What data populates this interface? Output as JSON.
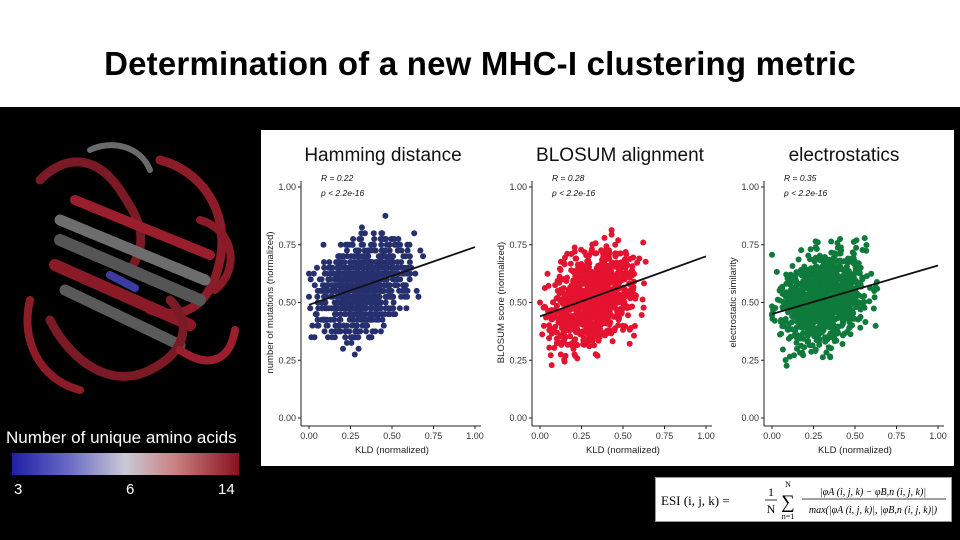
{
  "slide": {
    "title": "Determination of a new MHC-I clustering metric"
  },
  "colorbar": {
    "label": "Number of unique amino acids",
    "ticks": [
      "3",
      "6",
      "14"
    ]
  },
  "chart_data": [
    {
      "type": "scatter",
      "title": "Hamming distance",
      "xlabel": "KLD (normalized)",
      "ylabel": "number of mutations (normalized)",
      "xlim": [
        0,
        1
      ],
      "ylim": [
        0,
        1
      ],
      "xticks": [
        "0.00",
        "0.25",
        "0.50",
        "0.75",
        "1.00"
      ],
      "yticks": [
        "0.00",
        "0.25",
        "0.50",
        "0.75",
        "1.00"
      ],
      "stat_r": "R = 0.22",
      "stat_p": "p < 2.2e-16",
      "color": "#27306e",
      "banded": true,
      "fit": {
        "x": [
          0,
          1
        ],
        "y": [
          0.49,
          0.74
        ]
      }
    },
    {
      "type": "scatter",
      "title": "BLOSUM alignment",
      "xlabel": "KLD (normalized)",
      "ylabel": "BLOSUM score (normalized)",
      "xlim": [
        0,
        1
      ],
      "ylim": [
        0,
        1
      ],
      "xticks": [
        "0.00",
        "0.25",
        "0.50",
        "0.75",
        "1.00"
      ],
      "yticks": [
        "0.00",
        "0.25",
        "0.50",
        "0.75",
        "1.00"
      ],
      "stat_r": "R = 0.28",
      "stat_p": "p < 2.2e-16",
      "color": "#e4132f",
      "banded": false,
      "fit": {
        "x": [
          0,
          1
        ],
        "y": [
          0.44,
          0.7
        ]
      }
    },
    {
      "type": "scatter",
      "title": "electrostatics",
      "xlabel": "KLD (normalized)",
      "ylabel": "electrostatic similarity",
      "xlim": [
        0,
        1
      ],
      "ylim": [
        0,
        1
      ],
      "xticks": [
        "0.00",
        "0.25",
        "0.50",
        "0.75",
        "1.00"
      ],
      "yticks": [
        "0.00",
        "0.25",
        "0.50",
        "0.75",
        "1.00"
      ],
      "stat_r": "R = 0.35",
      "stat_p": "p < 2.2e-16",
      "color": "#0e7a3b",
      "banded": false,
      "fit": {
        "x": [
          0,
          1
        ],
        "y": [
          0.45,
          0.66
        ]
      }
    }
  ],
  "formula": {
    "lhs": "ESI (i, j, k) =",
    "frac1_num": "1",
    "frac1_den": "N",
    "sum": "∑",
    "sum_top": "N",
    "sum_bottom": "n=1",
    "numerator": "|φA (i, j, k) − φB,n (i, j, k)|",
    "denominator": "max(|φA (i, j, k)|, |φB,n (i, j, k)|)"
  }
}
